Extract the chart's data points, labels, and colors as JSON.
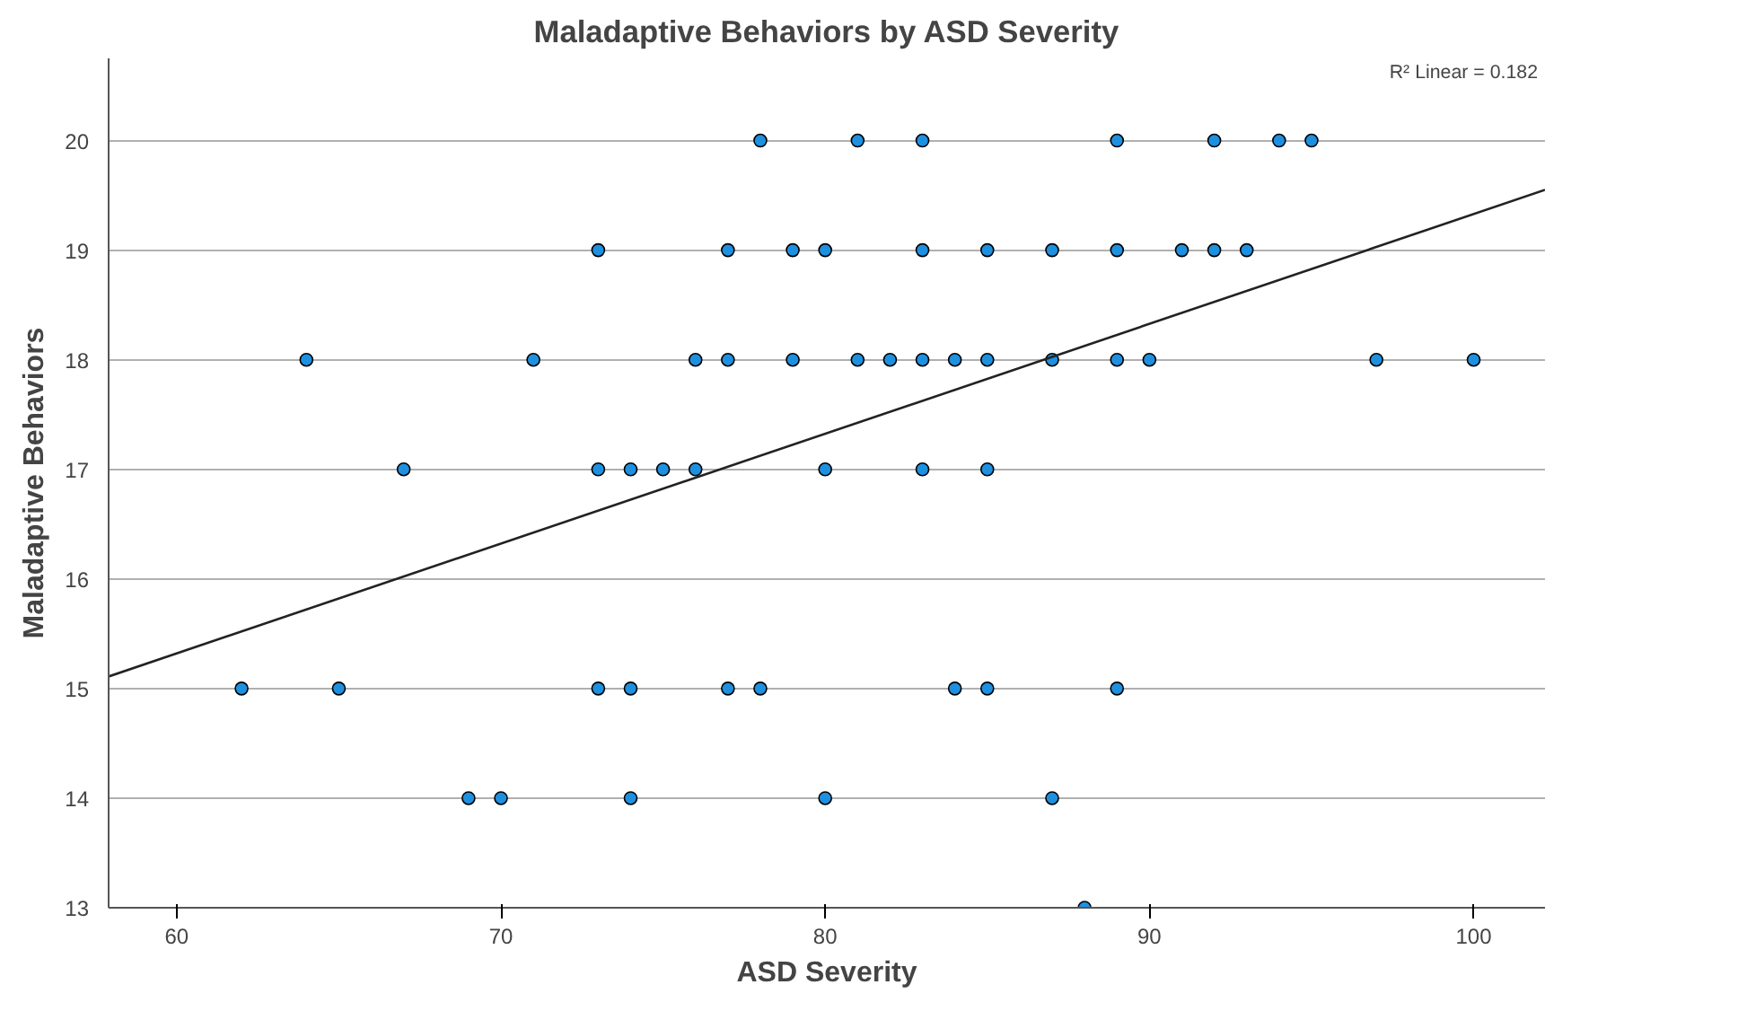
{
  "chart_data": {
    "type": "scatter",
    "title": "Maladaptive Behaviors by ASD Severity",
    "xlabel": "ASD Severity",
    "ylabel": "Maladaptive Behaviors",
    "annotations": [
      "R² Linear = 0.182"
    ],
    "xlim": [
      57.9,
      102.2
    ],
    "xticks": [
      60,
      70,
      80,
      90,
      100
    ],
    "ylim": [
      13,
      20.75
    ],
    "yticks": [
      13,
      14,
      15,
      16,
      17,
      18,
      19,
      20
    ],
    "grid": "y",
    "series": [
      {
        "color": "#1e90e0",
        "marker": "circle",
        "x": [
          78,
          81,
          83,
          89,
          92,
          94,
          95,
          73,
          77,
          79,
          80,
          83,
          85,
          87,
          89,
          91,
          92,
          93,
          64,
          71,
          76,
          77,
          79,
          81,
          82,
          83,
          84,
          85,
          87,
          89,
          90,
          97,
          100,
          67,
          73,
          74,
          75,
          76,
          80,
          83,
          85,
          62,
          65,
          73,
          74,
          77,
          78,
          84,
          85,
          89,
          69,
          70,
          74,
          80,
          87,
          88
        ],
        "values": [
          20,
          20,
          20,
          20,
          20,
          20,
          20,
          19,
          19,
          19,
          19,
          19,
          19,
          19,
          19,
          19,
          19,
          19,
          18,
          18,
          18,
          18,
          18,
          18,
          18,
          18,
          18,
          18,
          18,
          18,
          18,
          18,
          18,
          17,
          17,
          17,
          17,
          17,
          17,
          17,
          17,
          15,
          15,
          15,
          15,
          15,
          15,
          15,
          15,
          15,
          14,
          14,
          14,
          14,
          14,
          13
        ]
      },
      {
        "type": "line",
        "color": "#222222",
        "x": [
          57.9,
          102.2
        ],
        "values": [
          15.11,
          19.55
        ]
      }
    ]
  }
}
